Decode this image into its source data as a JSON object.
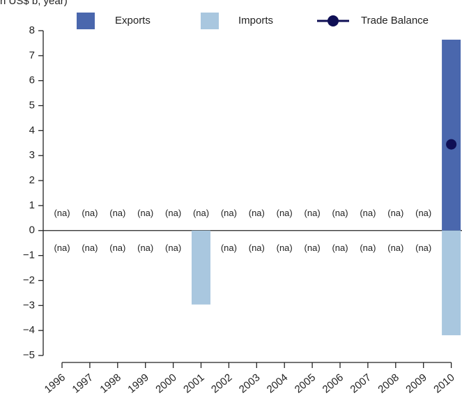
{
  "chart_data": {
    "type": "bar",
    "title": "n US$ b, year)",
    "categories": [
      "1996",
      "1997",
      "1998",
      "1999",
      "2000",
      "2001",
      "2002",
      "2003",
      "2004",
      "2005",
      "2006",
      "2007",
      "2008",
      "2009",
      "2010"
    ],
    "series": [
      {
        "name": "Exports",
        "type": "bar",
        "color": "#4a67ad",
        "values": [
          null,
          null,
          null,
          null,
          null,
          null,
          null,
          null,
          null,
          null,
          null,
          null,
          null,
          null,
          7.64
        ],
        "value_labels": [
          "(na)",
          "(na)",
          "(na)",
          "(na)",
          "(na)",
          "(na)",
          "(na)",
          "(na)",
          "(na)",
          "(na)",
          "(na)",
          "(na)",
          "(na)",
          "(na)",
          null
        ]
      },
      {
        "name": "Imports",
        "type": "bar",
        "color": "#a9c7df",
        "values": [
          null,
          null,
          null,
          null,
          null,
          -2.96,
          null,
          null,
          null,
          null,
          null,
          null,
          null,
          null,
          -4.19
        ],
        "value_labels": [
          "(na)",
          "(na)",
          "(na)",
          "(na)",
          "(na)",
          null,
          "(na)",
          "(na)",
          "(na)",
          "(na)",
          "(na)",
          "(na)",
          "(na)",
          "(na)",
          null
        ]
      },
      {
        "name": "Trade Balance",
        "type": "line",
        "color": "#0f0f55",
        "values": [
          null,
          null,
          null,
          null,
          null,
          null,
          null,
          null,
          null,
          null,
          null,
          null,
          null,
          null,
          3.45
        ]
      }
    ],
    "ylim": [
      -5,
      8
    ],
    "yticks": [
      {
        "value": -5,
        "label": "−5"
      },
      {
        "value": -4,
        "label": "−4"
      },
      {
        "value": -3,
        "label": "−3"
      },
      {
        "value": -2,
        "label": "−2"
      },
      {
        "value": -1,
        "label": "−1"
      },
      0,
      1,
      2,
      3,
      4,
      5,
      6,
      7,
      8
    ],
    "grid": false
  }
}
